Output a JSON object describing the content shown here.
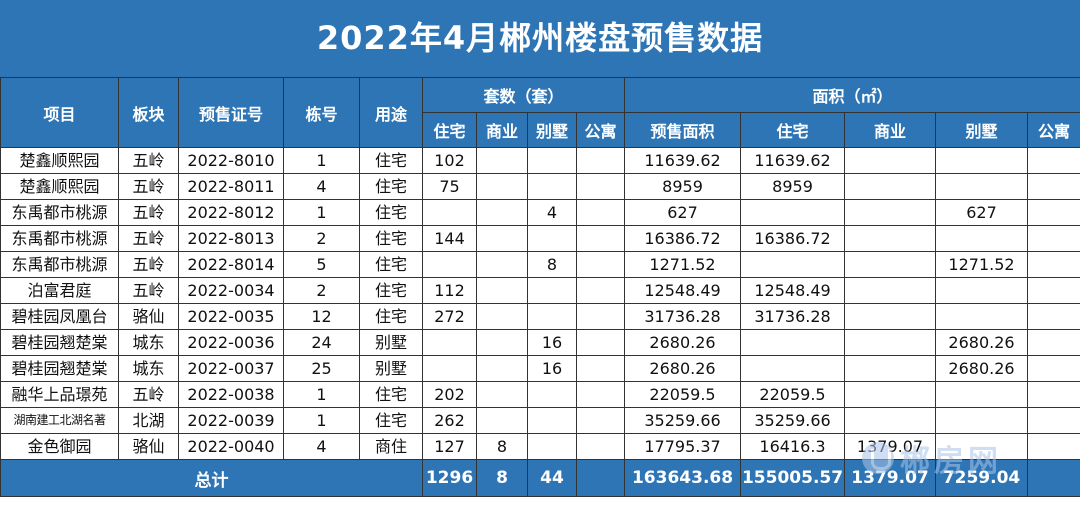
{
  "title": "2022年4月郴州楼盘预售数据",
  "headers": {
    "project": "项目",
    "district": "板块",
    "permit": "预售证号",
    "buildings": "栋号",
    "usage": "用途",
    "units_group": "套数（套）",
    "area_group": "面积（㎡）",
    "units_cols": [
      "住宅",
      "商业",
      "别墅",
      "公寓"
    ],
    "area_cols": [
      "预售面积",
      "住宅",
      "商业",
      "别墅",
      "公寓"
    ]
  },
  "rows": [
    [
      "楚鑫顺熙园",
      "五岭",
      "2022-8010",
      "1",
      "住宅",
      "102",
      "",
      "",
      "",
      "11639.62",
      "11639.62",
      "",
      "",
      ""
    ],
    [
      "楚鑫顺熙园",
      "五岭",
      "2022-8011",
      "4",
      "住宅",
      "75",
      "",
      "",
      "",
      "8959",
      "8959",
      "",
      "",
      ""
    ],
    [
      "东禹都市桃源",
      "五岭",
      "2022-8012",
      "1",
      "住宅",
      "",
      "",
      "4",
      "",
      "627",
      "",
      "",
      "627",
      ""
    ],
    [
      "东禹都市桃源",
      "五岭",
      "2022-8013",
      "2",
      "住宅",
      "144",
      "",
      "",
      "",
      "16386.72",
      "16386.72",
      "",
      "",
      ""
    ],
    [
      "东禹都市桃源",
      "五岭",
      "2022-8014",
      "5",
      "住宅",
      "",
      "",
      "8",
      "",
      "1271.52",
      "",
      "",
      "1271.52",
      ""
    ],
    [
      "泊富君庭",
      "五岭",
      "2022-0034",
      "2",
      "住宅",
      "112",
      "",
      "",
      "",
      "12548.49",
      "12548.49",
      "",
      "",
      ""
    ],
    [
      "碧桂园凤凰台",
      "骆仙",
      "2022-0035",
      "12",
      "住宅",
      "272",
      "",
      "",
      "",
      "31736.28",
      "31736.28",
      "",
      "",
      ""
    ],
    [
      "碧桂园翘楚棠",
      "城东",
      "2022-0036",
      "24",
      "别墅",
      "",
      "",
      "16",
      "",
      "2680.26",
      "",
      "",
      "2680.26",
      ""
    ],
    [
      "碧桂园翘楚棠",
      "城东",
      "2022-0037",
      "25",
      "别墅",
      "",
      "",
      "16",
      "",
      "2680.26",
      "",
      "",
      "2680.26",
      ""
    ],
    [
      "融华上品璟苑",
      "五岭",
      "2022-0038",
      "1",
      "住宅",
      "202",
      "",
      "",
      "",
      "22059.5",
      "22059.5",
      "",
      "",
      ""
    ],
    [
      "湖南建工北湖名著",
      "北湖",
      "2022-0039",
      "1",
      "住宅",
      "262",
      "",
      "",
      "",
      "35259.66",
      "35259.66",
      "",
      "",
      ""
    ],
    [
      "金色御园",
      "骆仙",
      "2022-0040",
      "4",
      "商住",
      "127",
      "8",
      "",
      "",
      "17795.37",
      "16416.3",
      "1379.07",
      "",
      ""
    ]
  ],
  "total": {
    "label": "总计",
    "values": [
      "1296",
      "8",
      "44",
      "",
      "163643.68",
      "155005.57",
      "1379.07",
      "7259.04",
      ""
    ]
  },
  "watermark": {
    "text": "郴房网",
    "icon": "house-logo-icon",
    "color": "#a9c4e8"
  },
  "colors": {
    "header_bg": "#2e75b6",
    "header_text": "#ffffff"
  }
}
